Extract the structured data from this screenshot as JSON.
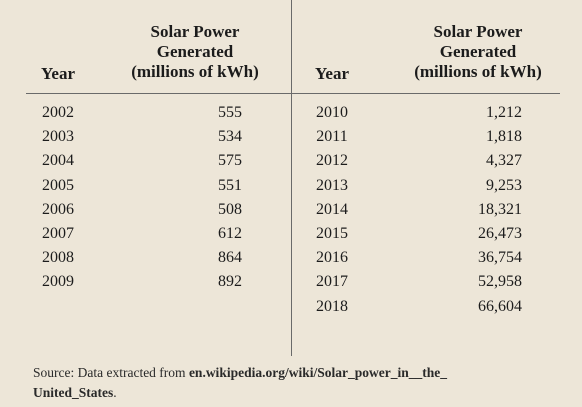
{
  "table": {
    "left_block": {
      "year_header": "Year",
      "solar_header": [
        "Solar Power",
        "Generated",
        "(millions of kWh)"
      ],
      "rows": [
        {
          "year": "2002",
          "value": "555"
        },
        {
          "year": "2003",
          "value": "534"
        },
        {
          "year": "2004",
          "value": "575"
        },
        {
          "year": "2005",
          "value": "551"
        },
        {
          "year": "2006",
          "value": "508"
        },
        {
          "year": "2007",
          "value": "612"
        },
        {
          "year": "2008",
          "value": "864"
        },
        {
          "year": "2009",
          "value": "892"
        }
      ]
    },
    "right_block": {
      "year_header": "Year",
      "solar_header": [
        "Solar Power",
        "Generated",
        "(millions of kWh)"
      ],
      "rows": [
        {
          "year": "2010",
          "value": "1,212"
        },
        {
          "year": "2011",
          "value": "1,818"
        },
        {
          "year": "2012",
          "value": "4,327"
        },
        {
          "year": "2013",
          "value": "9,253"
        },
        {
          "year": "2014",
          "value": "18,321"
        },
        {
          "year": "2015",
          "value": "26,473"
        },
        {
          "year": "2016",
          "value": "36,754"
        },
        {
          "year": "2017",
          "value": "52,958"
        },
        {
          "year": "2018",
          "value": "66,604"
        }
      ]
    }
  },
  "source": {
    "prefix": "Source: Data extracted from ",
    "url_part1": "en.wikipedia.org/wiki/Solar_power_in__the_",
    "url_part2": "United_States",
    "suffix": "."
  }
}
